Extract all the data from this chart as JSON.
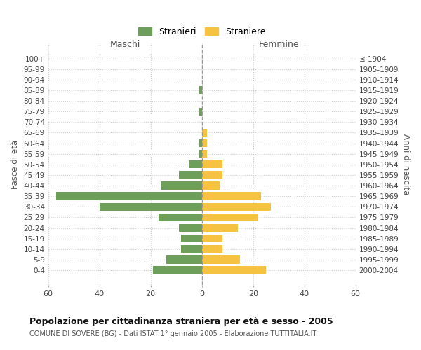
{
  "age_groups": [
    "100+",
    "95-99",
    "90-94",
    "85-89",
    "80-84",
    "75-79",
    "70-74",
    "65-69",
    "60-64",
    "55-59",
    "50-54",
    "45-49",
    "40-44",
    "35-39",
    "30-34",
    "25-29",
    "20-24",
    "15-19",
    "10-14",
    "5-9",
    "0-4"
  ],
  "birth_years": [
    "≤ 1904",
    "1905-1909",
    "1910-1914",
    "1915-1919",
    "1920-1924",
    "1925-1929",
    "1930-1934",
    "1935-1939",
    "1940-1944",
    "1945-1949",
    "1950-1954",
    "1955-1959",
    "1960-1964",
    "1965-1969",
    "1970-1974",
    "1975-1979",
    "1980-1984",
    "1985-1989",
    "1990-1994",
    "1995-1999",
    "2000-2004"
  ],
  "males": [
    0,
    0,
    0,
    1,
    0,
    1,
    0,
    0,
    1,
    1,
    5,
    9,
    16,
    57,
    40,
    17,
    9,
    8,
    8,
    14,
    19
  ],
  "females": [
    0,
    0,
    0,
    0,
    0,
    0,
    0,
    2,
    2,
    2,
    8,
    8,
    7,
    23,
    27,
    22,
    14,
    8,
    8,
    15,
    25
  ],
  "male_color": "#6d9e5a",
  "female_color": "#f5c242",
  "background_color": "#ffffff",
  "grid_color": "#cccccc",
  "title": "Popolazione per cittadinanza straniera per età e sesso - 2005",
  "subtitle": "COMUNE DI SOVERE (BG) - Dati ISTAT 1° gennaio 2005 - Elaborazione TUTTITALIA.IT",
  "xlabel_left": "Maschi",
  "xlabel_right": "Femmine",
  "ylabel_left": "Fasce di età",
  "ylabel_right": "Anni di nascita",
  "legend_males": "Stranieri",
  "legend_females": "Straniere",
  "xlim": 60,
  "dashed_line_color": "#999999"
}
